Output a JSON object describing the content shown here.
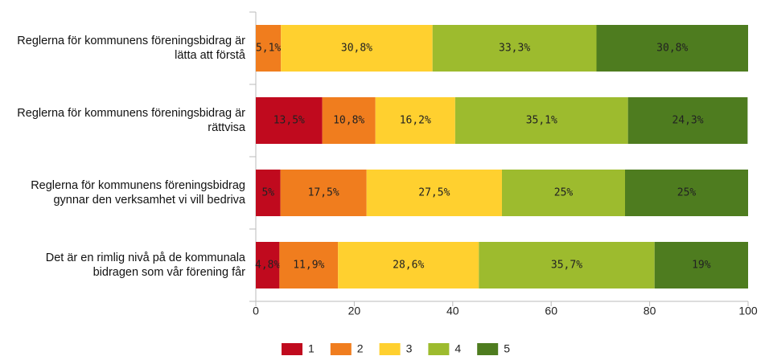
{
  "chart_data": {
    "type": "stacked_bar_horizontal",
    "categories": [
      "Reglerna för kommunens föreningsbidrag är lätta att förstå",
      "Reglerna för kommunens föreningsbidrag är rättvisa",
      "Reglerna för kommunens föreningsbidrag gynnar den verksamhet vi vill bedriva",
      "Det är en rimlig nivå på de kommunala bidragen som vår förening får"
    ],
    "series": [
      {
        "name": "1",
        "color": "#c00a1e",
        "values": [
          null,
          13.5,
          5,
          4.8
        ],
        "value_labels": [
          null,
          "13,5%",
          "5%",
          "4,8%"
        ]
      },
      {
        "name": "2",
        "color": "#f07d1e",
        "values": [
          5.1,
          10.8,
          17.5,
          11.9
        ],
        "value_labels": [
          "5,1%",
          "10,8%",
          "17,5%",
          "11,9%"
        ]
      },
      {
        "name": "3",
        "color": "#ffd02f",
        "values": [
          30.8,
          16.2,
          27.5,
          28.6
        ],
        "value_labels": [
          "30,8%",
          "16,2%",
          "27,5%",
          "28,6%"
        ]
      },
      {
        "name": "4",
        "color": "#9dbb2e",
        "values": [
          33.3,
          35.1,
          25,
          35.7
        ],
        "value_labels": [
          "33,3%",
          "35,1%",
          "25%",
          "35,7%"
        ]
      },
      {
        "name": "5",
        "color": "#4e7c1f",
        "values": [
          30.8,
          24.3,
          25,
          19
        ],
        "value_labels": [
          "30,8%",
          "24,3%",
          "25%",
          "19%"
        ]
      }
    ],
    "xlim": [
      0,
      100
    ],
    "xticks": [
      0,
      20,
      40,
      60,
      80,
      100
    ],
    "legend": "bottom"
  }
}
